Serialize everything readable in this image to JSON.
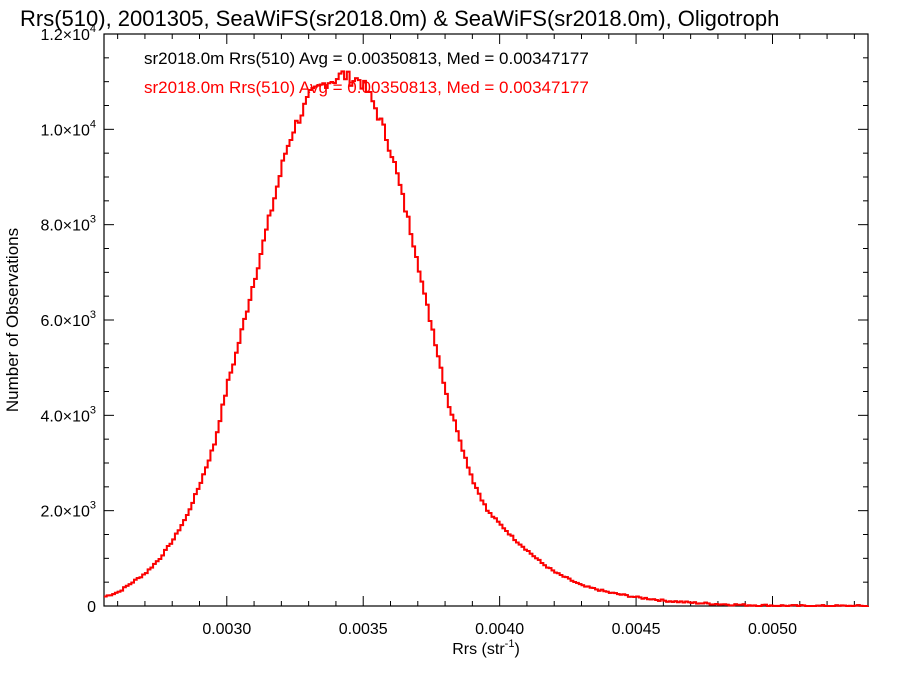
{
  "chart_data": {
    "type": "line",
    "title": "Rrs(510), 2001305, SeaWiFS(sr2018.0m) & SeaWiFS(sr2018.0m), Oligotroph",
    "xlabel": "Rrs (str",
    "xlabel_sup": "-1",
    "xlabel_tail": ")",
    "ylabel": "Number of Observations",
    "xlim": [
      0.00255,
      0.00535
    ],
    "ylim": [
      0,
      12000
    ],
    "xticks": [
      0.003,
      0.0035,
      0.004,
      0.0045,
      0.005
    ],
    "xtick_labels": [
      "0.0030",
      "0.0035",
      "0.0040",
      "0.0045",
      "0.0050"
    ],
    "yticks": [
      0,
      2000,
      4000,
      6000,
      8000,
      10000,
      12000
    ],
    "ytick_labels": [
      {
        "mant": "0",
        "exp": ""
      },
      {
        "mant": "2.0×10",
        "exp": "3"
      },
      {
        "mant": "4.0×10",
        "exp": "3"
      },
      {
        "mant": "6.0×10",
        "exp": "3"
      },
      {
        "mant": "8.0×10",
        "exp": "3"
      },
      {
        "mant": "1.0×10",
        "exp": "4"
      },
      {
        "mant": "1.2×10",
        "exp": "4"
      }
    ],
    "grid": false,
    "legend_position": "top-left",
    "series": [
      {
        "name": "sr2018.0m Rrs(510) Avg = 0.00350813, Med = 0.00347177",
        "color": "#000000",
        "x": [
          0.00255,
          0.0026,
          0.00265,
          0.0027,
          0.00275,
          0.0028,
          0.00285,
          0.0029,
          0.00295,
          0.003,
          0.00303,
          0.00306,
          0.00309,
          0.00312,
          0.00315,
          0.00318,
          0.00321,
          0.00324,
          0.00327,
          0.0033,
          0.00333,
          0.00336,
          0.00339,
          0.00342,
          0.00345,
          0.00348,
          0.00351,
          0.00354,
          0.00357,
          0.0036,
          0.00363,
          0.00366,
          0.00369,
          0.00372,
          0.00375,
          0.00378,
          0.00381,
          0.00384,
          0.00387,
          0.0039,
          0.00395,
          0.004,
          0.00405,
          0.0041,
          0.00415,
          0.0042,
          0.00425,
          0.0043,
          0.00435,
          0.0044,
          0.00445,
          0.0045,
          0.00455,
          0.0046,
          0.00465,
          0.0047,
          0.00475,
          0.0048,
          0.00485,
          0.0049,
          0.00495,
          0.005,
          0.00505,
          0.0051,
          0.00515,
          0.0052,
          0.00525,
          0.0053,
          0.00535
        ],
        "y": [
          200,
          300,
          500,
          700,
          1000,
          1400,
          1900,
          2600,
          3400,
          4700,
          5300,
          6000,
          6700,
          7400,
          8100,
          8800,
          9500,
          10000,
          10350,
          10700,
          10850,
          11000,
          11050,
          11150,
          11050,
          11050,
          10800,
          10450,
          10000,
          9500,
          8800,
          8100,
          7400,
          6500,
          5800,
          5000,
          4200,
          3700,
          3100,
          2600,
          2000,
          1700,
          1400,
          1150,
          900,
          700,
          560,
          420,
          350,
          280,
          230,
          180,
          150,
          110,
          90,
          70,
          55,
          40,
          30,
          20,
          15,
          10,
          5,
          0,
          0,
          0,
          0,
          0,
          0
        ]
      },
      {
        "name": "sr2018.0m Rrs(510) Avg = 0.00350813, Med = 0.00347177",
        "color": "#ff0000",
        "x": [
          0.00255,
          0.0026,
          0.00265,
          0.0027,
          0.00275,
          0.0028,
          0.00285,
          0.0029,
          0.00295,
          0.003,
          0.00303,
          0.00306,
          0.00309,
          0.00312,
          0.00315,
          0.00318,
          0.00321,
          0.00324,
          0.00327,
          0.0033,
          0.00333,
          0.00336,
          0.00339,
          0.00342,
          0.00345,
          0.00348,
          0.00351,
          0.00354,
          0.00357,
          0.0036,
          0.00363,
          0.00366,
          0.00369,
          0.00372,
          0.00375,
          0.00378,
          0.00381,
          0.00384,
          0.00387,
          0.0039,
          0.00395,
          0.004,
          0.00405,
          0.0041,
          0.00415,
          0.0042,
          0.00425,
          0.0043,
          0.00435,
          0.0044,
          0.00445,
          0.0045,
          0.00455,
          0.0046,
          0.00465,
          0.0047,
          0.00475,
          0.0048,
          0.00485,
          0.0049,
          0.00495,
          0.005,
          0.00505,
          0.0051,
          0.00515,
          0.0052,
          0.00525,
          0.0053,
          0.00535
        ],
        "y": [
          200,
          300,
          500,
          700,
          1000,
          1400,
          1900,
          2600,
          3400,
          4700,
          5300,
          6000,
          6700,
          7400,
          8100,
          8800,
          9500,
          10000,
          10350,
          10700,
          10850,
          11000,
          11050,
          11150,
          11050,
          11050,
          10800,
          10450,
          10000,
          9500,
          8800,
          8100,
          7400,
          6500,
          5800,
          5000,
          4200,
          3700,
          3100,
          2600,
          2000,
          1700,
          1400,
          1150,
          900,
          700,
          560,
          420,
          350,
          280,
          230,
          180,
          150,
          110,
          90,
          70,
          55,
          40,
          30,
          20,
          15,
          10,
          5,
          0,
          0,
          0,
          0,
          0,
          0
        ]
      }
    ]
  }
}
